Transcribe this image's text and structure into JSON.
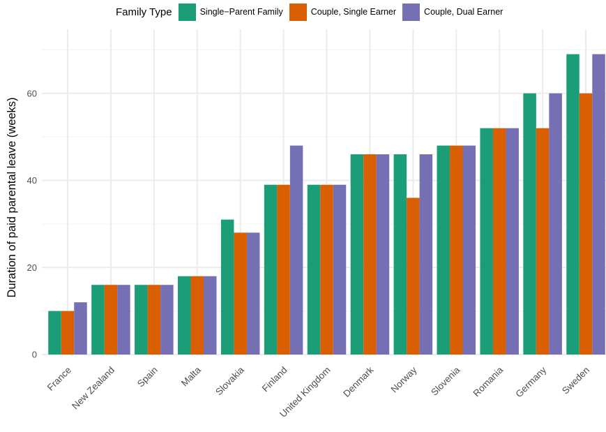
{
  "chart_data": {
    "type": "bar",
    "title": "",
    "xlabel": "",
    "ylabel": "Duration of paid parental leave (weeks)",
    "ylim": [
      0,
      70
    ],
    "yticks": [
      0,
      20,
      40,
      60
    ],
    "grid": true,
    "legend_title": "Family Type",
    "legend_position": "top",
    "categories": [
      "France",
      "New Zealand",
      "Spain",
      "Malta",
      "Slovakia",
      "Finland",
      "United Kingdom",
      "Denmark",
      "Norway",
      "Slovenia",
      "Romania",
      "Germany",
      "Sweden"
    ],
    "series": [
      {
        "name": "Single−Parent Family",
        "color": "#1b9e77",
        "values": [
          10,
          16,
          16,
          18,
          31,
          39,
          39,
          46,
          46,
          48,
          52,
          60,
          69
        ]
      },
      {
        "name": "Couple, Single Earner",
        "color": "#d95f02",
        "values": [
          10,
          16,
          16,
          18,
          28,
          39,
          39,
          46,
          36,
          48,
          52,
          52,
          60
        ]
      },
      {
        "name": "Couple, Dual Earner",
        "color": "#7570b3",
        "values": [
          12,
          16,
          16,
          18,
          28,
          48,
          39,
          46,
          46,
          48,
          52,
          60,
          69
        ]
      }
    ]
  }
}
